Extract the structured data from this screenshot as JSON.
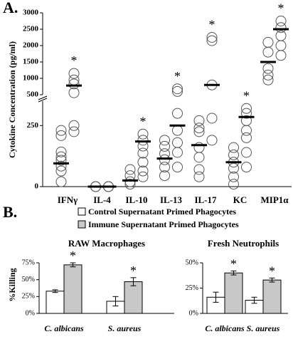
{
  "figure": {
    "panel_labels": [
      "A.",
      "B."
    ]
  },
  "chart_data": [
    {
      "type": "scatter-strip",
      "y_label": "Cytokine Concentration (pg/ml)",
      "categories": [
        "IFNγ",
        "IL-4",
        "IL-10",
        "IL-13",
        "IL-17",
        "KC",
        "MIP1α"
      ],
      "segments": [
        {
          "ylim": [
            0,
            350
          ],
          "yticks": [
            0,
            250
          ]
        },
        {
          "ylim": [
            500,
            3000
          ],
          "yticks": [
            500,
            1000,
            1500,
            2000,
            2500,
            3000
          ]
        }
      ],
      "series": [
        {
          "color": "#ffffff",
          "values": [
            [
              230,
              209,
              142,
              122,
              108,
              84,
              64,
              20
            ],
            [
              0,
              0,
              0
            ],
            [
              70,
              45,
              20,
              10
            ],
            [
              190,
              165,
              135,
              110,
              80,
              45
            ],
            [
              270,
              240,
              225,
              160,
              120,
              70,
              40
            ],
            [
              160,
              130,
              100,
              75,
              40,
              10
            ],
            [
              2100,
              1800,
              1300,
              1100,
              950
            ]
          ],
          "means": [
            95,
            0,
            25,
            115,
            170,
            100,
            1500
          ]
        },
        {
          "color": "#ffffff",
          "values": [
            [
              1150,
              950,
              830,
              560,
              250,
              225
            ],
            [
              0,
              0,
              0
            ],
            [
              215,
              190,
              166,
              137,
              100,
              64,
              40
            ],
            [
              680,
              600,
              300,
              230,
              180,
              140,
              80
            ],
            [
              2250,
              2150,
              800,
              280,
              190
            ],
            [
              320,
              300,
              270,
              230,
              200,
              140,
              80
            ],
            [
              2750,
              2550,
              2300,
              2000,
              1700
            ]
          ],
          "means": [
            780,
            0,
            185,
            250,
            800,
            285,
            2500
          ]
        }
      ],
      "annotations": [
        {
          "text": "*",
          "category": "IFNγ"
        },
        {
          "text": "*",
          "category": "IL-10"
        },
        {
          "text": "*",
          "category": "IL-13"
        },
        {
          "text": "*",
          "category": "IL-17"
        },
        {
          "text": "*",
          "category": "KC"
        },
        {
          "text": "*",
          "category": "MIP1α"
        }
      ]
    },
    {
      "type": "bar",
      "title": "RAW Macrophages",
      "y_label": "%Killing",
      "categories": [
        "C. albicans",
        "S. aureus"
      ],
      "ylim": [
        0,
        75
      ],
      "yticks": [
        {
          "value": 0,
          "label": "0%"
        },
        {
          "value": 25,
          "label": "25%"
        },
        {
          "value": 50,
          "label": "50%"
        },
        {
          "value": 75,
          "label": "75%"
        }
      ],
      "series": [
        {
          "name": "Control Supernatant Primed Phagocytes",
          "color": "#ffffff",
          "values": [
            33,
            18
          ],
          "errors": [
            2,
            7
          ]
        },
        {
          "name": "Immune Supernatant Primed Phagocytes",
          "color": "#c8c8c8",
          "values": [
            72,
            47
          ],
          "errors": [
            3,
            6
          ]
        }
      ],
      "annotations": [
        {
          "text": "*",
          "category": "C. albicans"
        },
        {
          "text": "*",
          "category": "S. aureus"
        }
      ]
    },
    {
      "type": "bar",
      "title": "Fresh Neutrophils",
      "categories": [
        "C. albicans",
        "S. aureus"
      ],
      "ylim": [
        0,
        50
      ],
      "yticks": [
        {
          "value": 0,
          "label": "0%"
        },
        {
          "value": 25,
          "label": "25%"
        },
        {
          "value": 50,
          "label": "50%"
        }
      ],
      "series": [
        {
          "color": "#ffffff",
          "values": [
            16,
            13
          ],
          "errors": [
            5,
            3
          ]
        },
        {
          "color": "#c8c8c8",
          "values": [
            40,
            33
          ],
          "errors": [
            2,
            2
          ]
        }
      ],
      "annotations": [
        {
          "text": "*",
          "category": "C. albicans"
        },
        {
          "text": "*",
          "category": "S. aureus"
        }
      ]
    }
  ]
}
